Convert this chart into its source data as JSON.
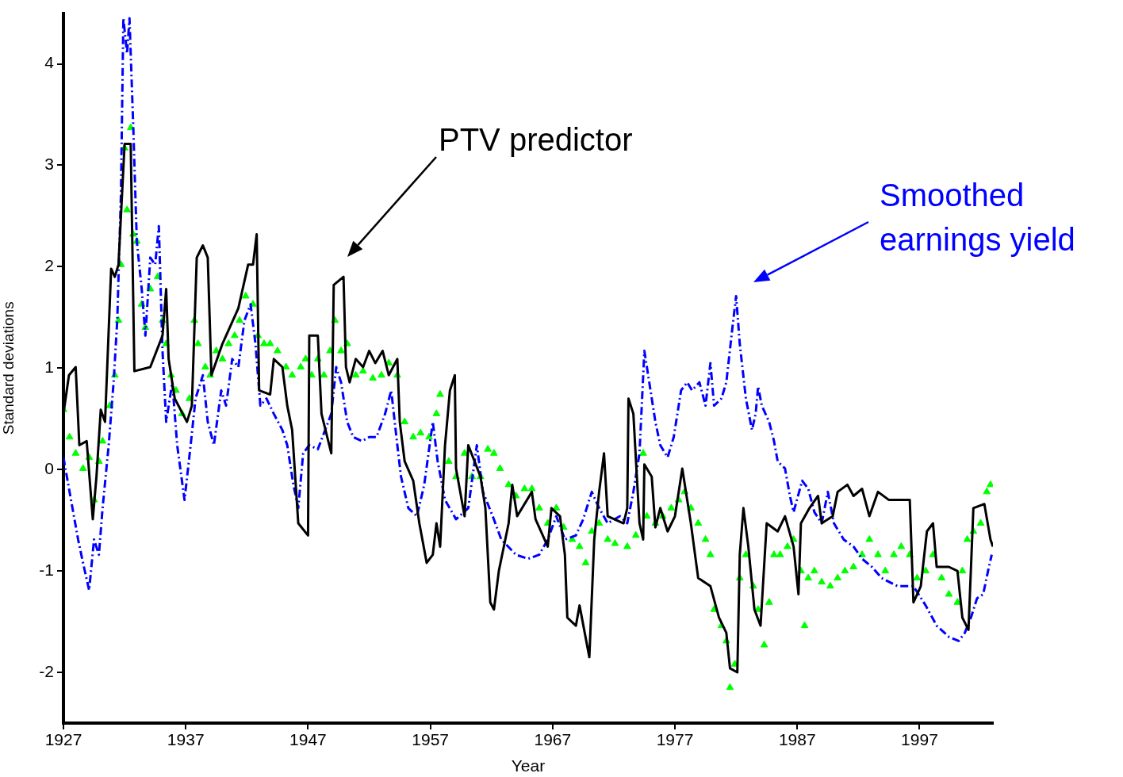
{
  "chart_data": {
    "type": "line",
    "xlabel": "Year",
    "ylabel": "Standard deviations",
    "xlim": [
      1927,
      2003
    ],
    "ylim": [
      -2.5,
      4.5
    ],
    "xticks": [
      1927,
      1937,
      1947,
      1957,
      1967,
      1977,
      1987,
      1997
    ],
    "yticks": [
      -2,
      -1,
      0,
      1,
      2,
      3,
      4
    ],
    "grid": false,
    "legend": false,
    "series": [
      {
        "name": "PTV predictor",
        "color": "#000000",
        "line_style": "solid",
        "marker": "none",
        "x": [
          1927.0,
          1927.45,
          1928.0,
          1928.3,
          1928.9,
          1929.4,
          1929.7,
          1930.05,
          1930.4,
          1930.9,
          1931.2,
          1931.5,
          1932.0,
          1932.5,
          1932.8,
          1934.1,
          1935.1,
          1935.4,
          1935.6,
          1936.1,
          1937.1,
          1937.5,
          1937.9,
          1938.4,
          1938.8,
          1939.1,
          1940.0,
          1941.3,
          1942.1,
          1942.5,
          1942.8,
          1943.0,
          1943.9,
          1944.2,
          1944.9,
          1945.3,
          1945.7,
          1946.2,
          1947.0,
          1947.1,
          1947.8,
          1948.1,
          1948.9,
          1949.1,
          1949.9,
          1950.1,
          1950.4,
          1950.9,
          1951.5,
          1952.0,
          1952.5,
          1953.1,
          1953.6,
          1954.3,
          1954.5,
          1954.9,
          1955.6,
          1956.1,
          1956.7,
          1957.2,
          1957.5,
          1957.8,
          1958.2,
          1958.6,
          1959.0,
          1959.1,
          1959.8,
          1960.1,
          1961.1,
          1961.5,
          1961.9,
          1962.2,
          1962.6,
          1963.4,
          1963.7,
          1964.1,
          1965.3,
          1965.6,
          1966.6,
          1966.9,
          1967.6,
          1968.0,
          1968.2,
          1968.9,
          1969.2,
          1970.0,
          1970.4,
          1970.8,
          1971.2,
          1971.5,
          1972.8,
          1973.1,
          1973.2,
          1973.6,
          1974.1,
          1974.4,
          1974.5,
          1975.1,
          1975.4,
          1975.8,
          1976.4,
          1977.0,
          1977.6,
          1978.3,
          1978.9,
          1979.9,
          1980.6,
          1981.2,
          1981.5,
          1982.1,
          1982.3,
          1982.6,
          1983.0,
          1983.5,
          1984.0,
          1984.5,
          1985.4,
          1986.0,
          1986.7,
          1987.1,
          1987.3,
          1988.0,
          1988.7,
          1989.0,
          1989.9,
          1990.3,
          1991.1,
          1991.6,
          1992.3,
          1992.9,
          1993.6,
          1994.5,
          1996.2,
          1996.5,
          1997.1,
          1997.6,
          1998.1,
          1998.4,
          1999.4,
          2000.1,
          2000.5,
          2001.0,
          2001.4,
          2002.3,
          2002.8,
          2003.0
        ],
        "values": [
          0.55,
          0.93,
          1.01,
          0.24,
          0.28,
          -0.49,
          -0.07,
          0.59,
          0.47,
          1.98,
          1.9,
          2.02,
          3.21,
          3.21,
          0.97,
          1.01,
          1.32,
          1.78,
          1.09,
          0.7,
          0.47,
          0.63,
          2.09,
          2.21,
          2.09,
          0.93,
          1.24,
          1.59,
          2.02,
          2.02,
          2.32,
          0.78,
          0.74,
          1.09,
          1.01,
          0.63,
          0.39,
          -0.53,
          -0.65,
          1.32,
          1.32,
          0.55,
          0.16,
          1.82,
          1.9,
          1.01,
          0.86,
          1.09,
          1.01,
          1.17,
          1.05,
          1.17,
          0.93,
          1.09,
          0.47,
          0.08,
          -0.11,
          -0.53,
          -0.92,
          -0.84,
          -0.53,
          -0.76,
          0.24,
          0.78,
          0.93,
          0.01,
          -0.46,
          0.24,
          -0.07,
          -0.38,
          -1.31,
          -1.38,
          -1.0,
          -0.53,
          -0.15,
          -0.46,
          -0.22,
          -0.49,
          -0.76,
          -0.38,
          -0.46,
          -0.84,
          -1.46,
          -1.54,
          -1.34,
          -1.85,
          -0.69,
          -0.22,
          0.16,
          -0.46,
          -0.53,
          -0.38,
          0.7,
          0.55,
          -0.53,
          -0.69,
          0.05,
          -0.07,
          -0.57,
          -0.38,
          -0.61,
          -0.46,
          0.01,
          -0.53,
          -1.07,
          -1.15,
          -1.46,
          -1.61,
          -1.96,
          -2.0,
          -0.84,
          -0.38,
          -0.76,
          -1.38,
          -1.54,
          -0.53,
          -0.61,
          -0.46,
          -0.76,
          -1.23,
          -0.53,
          -0.38,
          -0.26,
          -0.53,
          -0.46,
          -0.22,
          -0.15,
          -0.26,
          -0.19,
          -0.46,
          -0.22,
          -0.3,
          -0.3,
          -1.31,
          -1.15,
          -0.61,
          -0.53,
          -0.96,
          -0.96,
          -1.0,
          -1.46,
          -1.58,
          -0.38,
          -0.34,
          -0.69,
          -0.76
        ]
      },
      {
        "name": "Smoothed earnings yield",
        "color": "#0000ff",
        "line_style": "dashed",
        "marker": "none",
        "x": [
          1927.0,
          1927.5,
          1928.2,
          1928.6,
          1929.1,
          1929.5,
          1929.9,
          1930.2,
          1930.7,
          1931.1,
          1931.4,
          1931.7,
          1931.9,
          1932.2,
          1932.4,
          1932.7,
          1933.0,
          1933.4,
          1933.7,
          1934.1,
          1934.5,
          1934.8,
          1935.1,
          1935.4,
          1935.9,
          1936.3,
          1936.9,
          1937.4,
          1937.8,
          1938.4,
          1938.8,
          1939.3,
          1939.9,
          1940.3,
          1940.8,
          1941.3,
          1941.8,
          1942.3,
          1942.7,
          1943.1,
          1943.6,
          1944.2,
          1944.9,
          1945.3,
          1945.8,
          1946.2,
          1946.6,
          1947.1,
          1947.8,
          1948.4,
          1948.9,
          1949.3,
          1949.7,
          1950.2,
          1950.7,
          1951.4,
          1952.0,
          1952.6,
          1953.3,
          1953.8,
          1954.3,
          1954.6,
          1955.2,
          1955.9,
          1956.5,
          1957.2,
          1957.6,
          1958.2,
          1959.1,
          1960.1,
          1960.8,
          1961.3,
          1962.1,
          1962.8,
          1964.0,
          1965.0,
          1965.9,
          1966.6,
          1967.3,
          1968.0,
          1968.9,
          1969.5,
          1970.2,
          1970.8,
          1971.5,
          1972.5,
          1973.1,
          1973.6,
          1974.1,
          1974.5,
          1974.9,
          1975.4,
          1975.8,
          1976.4,
          1976.9,
          1977.5,
          1978.0,
          1978.4,
          1979.0,
          1979.5,
          1979.9,
          1980.2,
          1980.8,
          1981.2,
          1981.7,
          1982.0,
          1982.3,
          1982.8,
          1983.3,
          1983.6,
          1983.8,
          1984.1,
          1984.7,
          1985.1,
          1985.4,
          1986.0,
          1986.4,
          1986.7,
          1987.4,
          1987.9,
          1988.4,
          1989.0,
          1989.5,
          1990.0,
          1990.8,
          1991.6,
          1992.3,
          1993.1,
          1993.9,
          1995.2,
          1996.5,
          1997.5,
          1998.4,
          1999.4,
          2000.2,
          2000.7,
          2001.2,
          2001.7,
          2002.2,
          2002.6,
          2002.9
        ],
        "values": [
          0.12,
          -0.22,
          -0.69,
          -0.92,
          -1.19,
          -0.69,
          -0.84,
          -0.38,
          0.24,
          0.86,
          1.47,
          2.71,
          4.45,
          4.1,
          4.45,
          3.41,
          2.25,
          1.78,
          1.32,
          2.09,
          2.02,
          2.4,
          1.17,
          0.47,
          0.86,
          0.24,
          -0.3,
          0.24,
          0.7,
          0.93,
          0.47,
          0.24,
          0.78,
          0.63,
          1.09,
          1.01,
          1.47,
          1.63,
          1.24,
          0.63,
          0.7,
          0.55,
          0.39,
          0.24,
          -0.15,
          -0.38,
          0.16,
          0.24,
          0.2,
          0.39,
          0.55,
          1.01,
          0.86,
          0.47,
          0.32,
          0.28,
          0.32,
          0.32,
          0.55,
          0.78,
          0.24,
          -0.07,
          -0.38,
          -0.46,
          -0.15,
          0.47,
          0.08,
          -0.3,
          -0.49,
          -0.38,
          0.24,
          -0.22,
          -0.46,
          -0.69,
          -0.84,
          -0.88,
          -0.84,
          -0.69,
          -0.46,
          -0.69,
          -0.65,
          -0.49,
          -0.22,
          -0.38,
          -0.53,
          -0.46,
          -0.53,
          -0.22,
          0.16,
          1.17,
          0.86,
          0.47,
          0.24,
          0.12,
          0.32,
          0.78,
          0.86,
          0.78,
          0.86,
          0.63,
          1.05,
          0.63,
          0.7,
          0.86,
          1.4,
          1.71,
          1.24,
          0.7,
          0.39,
          0.55,
          0.82,
          0.63,
          0.47,
          0.28,
          0.08,
          0.01,
          -0.26,
          -0.42,
          -0.11,
          -0.19,
          -0.42,
          -0.53,
          -0.22,
          -0.53,
          -0.69,
          -0.76,
          -0.88,
          -0.96,
          -1.07,
          -1.15,
          -1.15,
          -1.34,
          -1.54,
          -1.65,
          -1.69,
          -1.61,
          -1.46,
          -1.27,
          -1.23,
          -1.0,
          -0.84
        ]
      },
      {
        "type": "scatter",
        "color": "#00ff00",
        "marker": "triangle",
        "x": [
          1927.0,
          1927.5,
          1928.0,
          1928.6,
          1929.1,
          1929.5,
          1929.9,
          1930.2,
          1930.8,
          1931.2,
          1931.5,
          1931.7,
          1932.0,
          1932.2,
          1932.5,
          1932.7,
          1933.0,
          1933.4,
          1933.7,
          1934.1,
          1934.7,
          1935.1,
          1935.4,
          1935.8,
          1936.2,
          1936.7,
          1937.3,
          1937.7,
          1938.0,
          1938.6,
          1939.0,
          1939.5,
          1940.0,
          1940.5,
          1941.0,
          1941.4,
          1941.9,
          1942.5,
          1942.9,
          1943.4,
          1943.9,
          1944.5,
          1945.2,
          1945.7,
          1946.4,
          1946.8,
          1947.3,
          1947.8,
          1948.3,
          1948.8,
          1949.2,
          1949.7,
          1950.2,
          1950.9,
          1951.5,
          1952.3,
          1953.0,
          1953.6,
          1954.3,
          1954.9,
          1955.6,
          1956.2,
          1956.9,
          1957.5,
          1957.8,
          1958.5,
          1959.1,
          1959.8,
          1960.4,
          1961.1,
          1961.7,
          1962.2,
          1962.7,
          1963.4,
          1964.0,
          1964.7,
          1965.3,
          1965.9,
          1966.6,
          1967.3,
          1967.9,
          1968.6,
          1969.2,
          1969.7,
          1970.2,
          1970.8,
          1971.5,
          1972.1,
          1973.1,
          1973.8,
          1974.4,
          1974.7,
          1975.4,
          1976.0,
          1976.7,
          1977.3,
          1977.8,
          1978.3,
          1978.9,
          1979.5,
          1979.9,
          1980.2,
          1980.8,
          1981.2,
          1981.5,
          1981.9,
          1982.3,
          1982.8,
          1983.4,
          1983.8,
          1984.3,
          1984.7,
          1985.1,
          1985.6,
          1986.2,
          1986.7,
          1987.3,
          1987.6,
          1987.9,
          1988.4,
          1989.0,
          1989.7,
          1990.3,
          1990.9,
          1991.6,
          1992.3,
          1992.9,
          1993.6,
          1994.2,
          1994.9,
          1995.5,
          1996.2,
          1996.8,
          1997.5,
          1998.1,
          1998.8,
          1999.4,
          2000.1,
          2000.5,
          2000.9,
          2001.4,
          2002.0,
          2002.5,
          2002.8
        ],
        "values": [
          0.59,
          0.32,
          0.16,
          0.01,
          0.12,
          -0.3,
          0.08,
          0.28,
          0.63,
          0.93,
          1.47,
          2.02,
          3.17,
          2.56,
          3.37,
          2.32,
          2.25,
          1.63,
          1.4,
          1.78,
          1.9,
          1.47,
          1.24,
          0.93,
          0.78,
          0.55,
          0.7,
          1.47,
          1.24,
          1.01,
          0.93,
          1.17,
          1.09,
          1.24,
          1.32,
          1.47,
          1.71,
          1.63,
          1.32,
          1.24,
          1.24,
          1.17,
          1.01,
          0.93,
          1.01,
          1.09,
          0.93,
          1.09,
          0.93,
          1.17,
          1.47,
          1.17,
          1.24,
          0.93,
          0.97,
          0.9,
          0.93,
          1.05,
          0.93,
          0.47,
          0.32,
          0.36,
          0.32,
          0.55,
          0.74,
          0.08,
          -0.07,
          0.16,
          -0.07,
          -0.07,
          0.2,
          0.16,
          0.01,
          -0.15,
          -0.26,
          -0.19,
          -0.19,
          -0.38,
          -0.53,
          -0.38,
          -0.57,
          -0.69,
          -0.76,
          -0.92,
          -0.61,
          -0.53,
          -0.69,
          -0.73,
          -0.76,
          -0.65,
          0.16,
          -0.46,
          -0.53,
          -0.46,
          -0.38,
          -0.3,
          -0.22,
          -0.38,
          -0.53,
          -0.69,
          -0.84,
          -1.38,
          -1.54,
          -1.69,
          -2.15,
          -1.92,
          -1.07,
          -0.84,
          -1.15,
          -1.38,
          -1.73,
          -1.31,
          -0.84,
          -0.84,
          -0.76,
          -0.69,
          -1.0,
          -1.54,
          -1.07,
          -1.0,
          -1.11,
          -1.15,
          -1.07,
          -1.0,
          -0.96,
          -0.84,
          -0.69,
          -0.84,
          -1.0,
          -0.84,
          -0.76,
          -0.84,
          -1.07,
          -1.0,
          -0.84,
          -1.07,
          -1.23,
          -1.31,
          -1.0,
          -0.69,
          -0.61,
          -0.53,
          -0.22,
          -0.15
        ]
      }
    ]
  }
}
